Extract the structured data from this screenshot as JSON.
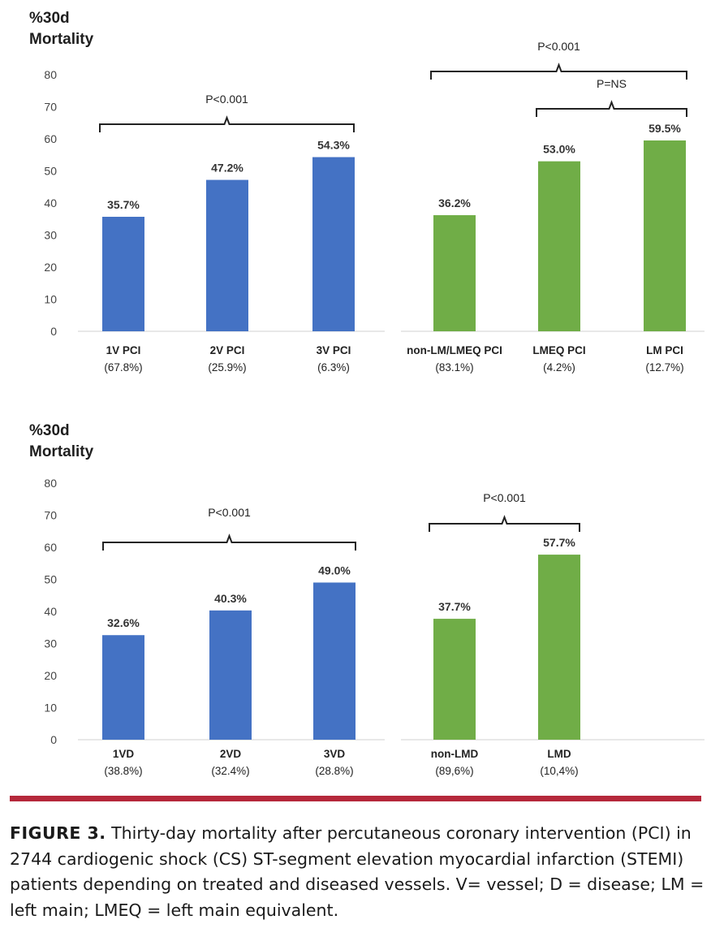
{
  "panels": [
    {
      "y_title": [
        "%30d",
        "Mortality"
      ],
      "y_ticks": [
        "80",
        "70",
        "60",
        "50",
        "40",
        "30",
        "20",
        "10",
        "0"
      ]
    },
    {
      "y_title": [
        "%30d",
        "Mortality"
      ],
      "y_ticks": [
        "80",
        "70",
        "60",
        "50",
        "40",
        "30",
        "20",
        "10",
        "0"
      ]
    }
  ],
  "chart_data": [
    {
      "type": "bar",
      "panel": "top-left",
      "categories": [
        "1V PCI",
        "2V PCI",
        "3V PCI"
      ],
      "sublabels": [
        "(67.8%)",
        "(25.9%)",
        "(6.3%)"
      ],
      "values": [
        35.7,
        47.2,
        54.3
      ],
      "value_labels": [
        "35.7%",
        "47.2%",
        "54.3%"
      ],
      "color": "#4472c4",
      "ylim": [
        0,
        80
      ],
      "annotations": [
        {
          "text": "P<0.001",
          "from": 0,
          "to": 2
        }
      ]
    },
    {
      "type": "bar",
      "panel": "top-right",
      "categories": [
        "non-LM/LMEQ PCI",
        "LMEQ PCI",
        "LM PCI"
      ],
      "sublabels": [
        "(83.1%)",
        "(4.2%)",
        "(12.7%)"
      ],
      "values": [
        36.2,
        53.0,
        59.5
      ],
      "value_labels": [
        "36.2%",
        "53.0%",
        "59.5%"
      ],
      "color": "#70ad47",
      "ylim": [
        0,
        80
      ],
      "annotations": [
        {
          "text": "P<0.001",
          "from": 0,
          "to": 2
        },
        {
          "text": "P=NS",
          "from": 1,
          "to": 2
        }
      ]
    },
    {
      "type": "bar",
      "panel": "bottom-left",
      "categories": [
        "1VD",
        "2VD",
        "3VD"
      ],
      "sublabels": [
        "(38.8%)",
        "(32.4%)",
        "(28.8%)"
      ],
      "values": [
        32.6,
        40.3,
        49.0
      ],
      "value_labels": [
        "32.6%",
        "40.3%",
        "49.0%"
      ],
      "color": "#4472c4",
      "ylim": [
        0,
        80
      ],
      "annotations": [
        {
          "text": "P<0.001",
          "from": 0,
          "to": 2
        }
      ]
    },
    {
      "type": "bar",
      "panel": "bottom-right",
      "categories": [
        "non-LMD",
        "LMD"
      ],
      "sublabels": [
        "(89,6%)",
        "(10,4%)"
      ],
      "values": [
        37.7,
        57.7
      ],
      "value_labels": [
        "37.7%",
        "57.7%"
      ],
      "color": "#70ad47",
      "ylim": [
        0,
        80
      ],
      "annotations": [
        {
          "text": "P<0.001",
          "from": 0,
          "to": 1
        }
      ]
    }
  ],
  "caption": {
    "label": "FIGURE 3.",
    "text": "Thirty-day mortality after percutaneous coronary intervention (PCI) in 2744 cardiogenic shock (CS) ST-segment elevation myocardial infarction (STEMI) patients depending on treated and diseased vessels. V= vessel; D = disease; LM = left main; LMEQ = left main equivalent."
  },
  "colors": {
    "blue_bar": "#4472c4",
    "green_bar": "#70ad47",
    "caption_rule": "#b5283b"
  }
}
